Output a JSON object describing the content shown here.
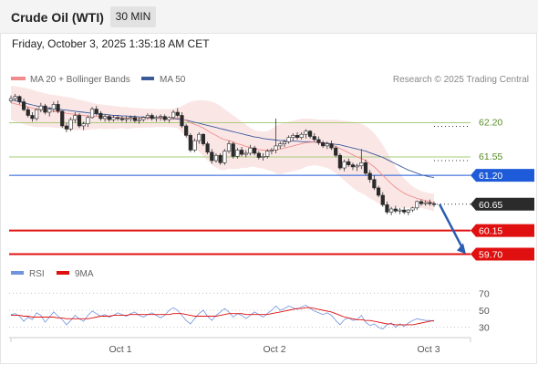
{
  "header": {
    "title": "Crude Oil (WTI)",
    "timeframe": "30 MIN",
    "timestamp": "Friday, October 3, 2025 1:35:18 AM CET"
  },
  "legend": {
    "ma20": {
      "label": "MA 20 + Bollinger Bands",
      "color": "#f28c8c"
    },
    "ma50": {
      "label": "MA 50",
      "color": "#3a5a9a"
    },
    "rsi": {
      "label": "RSI",
      "color": "#6f93dc"
    },
    "ma9": {
      "label": "9MA",
      "color": "#e01010"
    }
  },
  "research_note": "Research © 2025 Trading Central",
  "chart_data": {
    "type": "candlestick",
    "instrument": "Crude Oil (WTI)",
    "interval": "30 MIN",
    "xaxis": {
      "tick_labels": [
        "Oct 1",
        "Oct 2",
        "Oct 3"
      ]
    },
    "price_range": [
      59.5,
      62.8
    ],
    "candles_ohlc": [
      [
        62.62,
        62.72,
        62.58,
        62.66
      ],
      [
        62.66,
        62.75,
        62.62,
        62.7
      ],
      [
        62.7,
        62.72,
        62.55,
        62.6
      ],
      [
        62.6,
        62.66,
        62.42,
        62.45
      ],
      [
        62.45,
        62.5,
        62.3,
        62.34
      ],
      [
        62.34,
        62.4,
        62.22,
        62.28
      ],
      [
        62.28,
        62.48,
        62.24,
        62.45
      ],
      [
        62.45,
        62.58,
        62.4,
        62.52
      ],
      [
        62.52,
        62.56,
        62.36,
        62.4
      ],
      [
        62.4,
        62.5,
        62.32,
        62.46
      ],
      [
        62.46,
        62.6,
        62.4,
        62.55
      ],
      [
        62.55,
        62.62,
        62.38,
        62.42
      ],
      [
        62.42,
        62.44,
        62.1,
        62.14
      ],
      [
        62.14,
        62.2,
        62.02,
        62.08
      ],
      [
        62.08,
        62.3,
        62.04,
        62.26
      ],
      [
        62.26,
        62.4,
        62.2,
        62.34
      ],
      [
        62.34,
        62.38,
        62.1,
        62.14
      ],
      [
        62.14,
        62.22,
        62.06,
        62.18
      ],
      [
        62.18,
        62.34,
        62.12,
        62.3
      ],
      [
        62.3,
        62.5,
        62.28,
        62.46
      ],
      [
        62.46,
        62.52,
        62.34,
        62.38
      ],
      [
        62.38,
        62.42,
        62.24,
        62.28
      ],
      [
        62.28,
        62.36,
        62.22,
        62.32
      ],
      [
        62.32,
        62.36,
        62.22,
        62.26
      ],
      [
        62.26,
        62.34,
        62.22,
        62.3
      ],
      [
        62.3,
        62.34,
        62.24,
        62.28
      ],
      [
        62.28,
        62.32,
        62.22,
        62.26
      ],
      [
        62.26,
        62.32,
        62.2,
        62.28
      ],
      [
        62.28,
        62.34,
        62.22,
        62.3
      ],
      [
        62.3,
        62.34,
        62.2,
        62.24
      ],
      [
        62.24,
        62.3,
        62.18,
        62.26
      ],
      [
        62.26,
        62.32,
        62.22,
        62.3
      ],
      [
        62.3,
        62.38,
        62.26,
        62.34
      ],
      [
        62.34,
        62.38,
        62.24,
        62.28
      ],
      [
        62.28,
        62.34,
        62.22,
        62.3
      ],
      [
        62.3,
        62.36,
        62.24,
        62.32
      ],
      [
        62.32,
        62.36,
        62.22,
        62.26
      ],
      [
        62.26,
        62.32,
        62.2,
        62.3
      ],
      [
        62.3,
        62.44,
        62.26,
        62.4
      ],
      [
        62.4,
        62.48,
        62.3,
        62.34
      ],
      [
        62.34,
        62.4,
        62.1,
        62.14
      ],
      [
        62.14,
        62.18,
        61.92,
        61.96
      ],
      [
        61.96,
        62.0,
        61.64,
        61.68
      ],
      [
        61.68,
        61.9,
        61.64,
        61.86
      ],
      [
        61.86,
        62.02,
        61.8,
        61.98
      ],
      [
        61.98,
        62.0,
        61.76,
        61.8
      ],
      [
        61.8,
        61.84,
        61.6,
        61.64
      ],
      [
        61.64,
        61.7,
        61.42,
        61.48
      ],
      [
        61.48,
        61.62,
        61.44,
        61.58
      ],
      [
        61.58,
        61.62,
        61.4,
        61.44
      ],
      [
        61.44,
        61.7,
        61.4,
        61.66
      ],
      [
        61.66,
        61.86,
        61.62,
        61.8
      ],
      [
        61.8,
        61.84,
        61.52,
        61.56
      ],
      [
        61.56,
        61.72,
        61.52,
        61.68
      ],
      [
        61.68,
        61.74,
        61.56,
        61.6
      ],
      [
        61.6,
        61.68,
        61.54,
        61.62
      ],
      [
        61.62,
        61.78,
        61.58,
        61.72
      ],
      [
        61.72,
        61.76,
        61.58,
        61.62
      ],
      [
        61.62,
        61.66,
        61.5,
        61.54
      ],
      [
        61.54,
        61.62,
        61.48,
        61.56
      ],
      [
        61.56,
        61.7,
        61.52,
        61.66
      ],
      [
        61.66,
        61.72,
        61.6,
        61.68
      ],
      [
        61.68,
        62.28,
        61.62,
        61.76
      ],
      [
        61.76,
        61.84,
        61.7,
        61.8
      ],
      [
        61.8,
        61.88,
        61.74,
        61.84
      ],
      [
        61.84,
        61.96,
        61.8,
        61.92
      ],
      [
        61.92,
        62.0,
        61.86,
        61.96
      ],
      [
        61.96,
        62.02,
        61.88,
        61.92
      ],
      [
        61.92,
        62.02,
        61.88,
        61.98
      ],
      [
        61.98,
        62.08,
        61.9,
        62.04
      ],
      [
        62.04,
        62.06,
        61.9,
        61.94
      ],
      [
        61.94,
        62.0,
        61.84,
        61.88
      ],
      [
        61.88,
        61.94,
        61.78,
        61.82
      ],
      [
        61.82,
        61.86,
        61.72,
        61.76
      ],
      [
        61.76,
        61.84,
        61.7,
        61.8
      ],
      [
        61.8,
        61.86,
        61.68,
        61.72
      ],
      [
        61.72,
        61.76,
        61.54,
        61.58
      ],
      [
        61.58,
        61.62,
        61.3,
        61.34
      ],
      [
        61.34,
        61.5,
        61.28,
        61.46
      ],
      [
        61.46,
        61.52,
        61.36,
        61.4
      ],
      [
        61.4,
        61.44,
        61.3,
        61.36
      ],
      [
        61.36,
        61.42,
        61.28,
        61.38
      ],
      [
        61.38,
        61.7,
        61.32,
        61.44
      ],
      [
        61.44,
        61.5,
        61.2,
        61.24
      ],
      [
        61.24,
        61.3,
        61.06,
        61.12
      ],
      [
        61.12,
        61.2,
        60.92,
        60.96
      ],
      [
        60.96,
        61.0,
        60.78,
        60.82
      ],
      [
        60.82,
        60.88,
        60.6,
        60.64
      ],
      [
        60.64,
        60.7,
        60.46,
        60.5
      ],
      [
        60.5,
        60.6,
        60.44,
        60.56
      ],
      [
        60.56,
        60.62,
        60.48,
        60.52
      ],
      [
        60.52,
        60.58,
        60.46,
        60.54
      ],
      [
        60.54,
        60.6,
        60.46,
        60.5
      ],
      [
        60.5,
        60.56,
        60.44,
        60.54
      ],
      [
        60.54,
        60.6,
        60.5,
        60.58
      ],
      [
        60.58,
        60.72,
        60.54,
        60.7
      ],
      [
        60.7,
        60.74,
        60.62,
        60.66
      ],
      [
        60.66,
        60.72,
        60.62,
        60.68
      ],
      [
        60.68,
        60.74,
        60.62,
        60.66
      ],
      [
        60.66,
        60.7,
        60.6,
        60.65
      ]
    ],
    "ma20": [
      62.58,
      62.56,
      62.54,
      62.52,
      62.5,
      62.48,
      62.46,
      62.45,
      62.44,
      62.43,
      62.42,
      62.41,
      62.4,
      62.38,
      62.37,
      62.36,
      62.35,
      62.34,
      62.33,
      62.33,
      62.32,
      62.32,
      62.31,
      62.31,
      62.3,
      62.3,
      62.3,
      62.29,
      62.29,
      62.29,
      62.29,
      62.29,
      62.29,
      62.29,
      62.29,
      62.29,
      62.29,
      62.29,
      62.29,
      62.29,
      62.27,
      62.24,
      62.2,
      62.17,
      62.14,
      62.1,
      62.05,
      62.0,
      61.96,
      61.91,
      61.88,
      61.86,
      61.83,
      61.8,
      61.78,
      61.75,
      61.73,
      61.71,
      61.69,
      61.68,
      61.67,
      61.68,
      61.69,
      61.7,
      61.72,
      61.74,
      61.76,
      61.78,
      61.8,
      61.82,
      61.83,
      61.83,
      61.82,
      61.81,
      61.8,
      61.78,
      61.75,
      61.71,
      61.67,
      61.63,
      61.59,
      61.55,
      61.52,
      61.48,
      61.42,
      61.36,
      61.28,
      61.2,
      61.12,
      61.04,
      60.97,
      60.91,
      60.86,
      60.82,
      60.79,
      60.76,
      60.74,
      60.72,
      60.7,
      60.68
    ],
    "ma50": [
      62.64,
      62.62,
      62.6,
      62.58,
      62.56,
      62.54,
      62.52,
      62.5,
      62.49,
      62.48,
      62.47,
      62.46,
      62.45,
      62.44,
      62.43,
      62.42,
      62.41,
      62.4,
      62.39,
      62.38,
      62.37,
      62.36,
      62.36,
      62.35,
      62.34,
      62.34,
      62.33,
      62.33,
      62.32,
      62.32,
      62.31,
      62.31,
      62.3,
      62.3,
      62.3,
      62.29,
      62.29,
      62.28,
      62.28,
      62.27,
      62.26,
      62.25,
      62.23,
      62.21,
      62.19,
      62.17,
      62.15,
      62.13,
      62.11,
      62.09,
      62.07,
      62.05,
      62.03,
      62.01,
      61.99,
      61.97,
      61.95,
      61.93,
      61.92,
      61.9,
      61.89,
      61.88,
      61.87,
      61.86,
      61.86,
      61.85,
      61.85,
      61.85,
      61.84,
      61.84,
      61.84,
      61.83,
      61.83,
      61.82,
      61.81,
      61.8,
      61.79,
      61.78,
      61.76,
      61.74,
      61.72,
      61.7,
      61.68,
      61.66,
      61.63,
      61.6,
      61.57,
      61.54,
      61.5,
      61.46,
      61.42,
      61.38,
      61.34,
      61.3,
      61.27,
      61.24,
      61.21,
      61.19,
      61.17,
      61.16
    ],
    "bollinger_upper": [
      62.9,
      62.9,
      62.88,
      62.87,
      62.85,
      62.83,
      62.8,
      62.78,
      62.76,
      62.74,
      62.73,
      62.72,
      62.7,
      62.69,
      62.68,
      62.66,
      62.64,
      62.62,
      62.6,
      62.58,
      62.56,
      62.55,
      62.54,
      62.53,
      62.52,
      62.51,
      62.5,
      62.5,
      62.49,
      62.48,
      62.48,
      62.47,
      62.47,
      62.47,
      62.46,
      62.46,
      62.46,
      62.46,
      62.47,
      62.48,
      62.52,
      62.56,
      62.6,
      62.62,
      62.63,
      62.63,
      62.62,
      62.6,
      62.57,
      62.52,
      62.46,
      62.4,
      62.34,
      62.28,
      62.22,
      62.16,
      62.1,
      62.06,
      62.04,
      62.03,
      62.04,
      62.08,
      62.14,
      62.18,
      62.2,
      62.22,
      62.24,
      62.26,
      62.28,
      62.28,
      62.28,
      62.27,
      62.26,
      62.26,
      62.26,
      62.26,
      62.26,
      62.25,
      62.24,
      62.23,
      62.22,
      62.2,
      62.18,
      62.14,
      62.08,
      62.0,
      61.9,
      61.78,
      61.64,
      61.5,
      61.36,
      61.24,
      61.14,
      61.06,
      60.99,
      60.94,
      60.9,
      60.88,
      60.86,
      60.85
    ],
    "bollinger_lower": [
      62.26,
      62.22,
      62.2,
      62.17,
      62.15,
      62.13,
      62.12,
      62.12,
      62.12,
      62.12,
      62.11,
      62.1,
      62.1,
      62.07,
      62.06,
      62.06,
      62.06,
      62.06,
      62.06,
      62.08,
      62.08,
      62.09,
      62.08,
      62.09,
      62.08,
      62.09,
      62.1,
      62.08,
      62.09,
      62.1,
      62.1,
      62.11,
      62.11,
      62.11,
      62.12,
      62.12,
      62.12,
      62.12,
      62.11,
      62.1,
      62.02,
      61.92,
      61.8,
      61.72,
      61.65,
      61.57,
      61.48,
      61.4,
      61.35,
      61.3,
      61.3,
      61.32,
      61.32,
      61.32,
      61.34,
      61.34,
      61.36,
      61.36,
      61.34,
      61.33,
      61.3,
      61.28,
      61.24,
      61.22,
      61.24,
      61.26,
      61.28,
      61.3,
      61.32,
      61.36,
      61.38,
      61.39,
      61.38,
      61.36,
      61.34,
      61.3,
      61.24,
      61.17,
      61.1,
      61.03,
      60.96,
      60.9,
      60.86,
      60.82,
      60.76,
      60.72,
      60.66,
      60.62,
      60.6,
      60.58,
      60.58,
      60.58,
      60.58,
      60.58,
      60.59,
      60.58,
      60.58,
      60.56,
      60.54,
      60.51
    ],
    "horizontal_lines": [
      {
        "value": 62.2,
        "label": "62.20",
        "color": "#a6cc7a",
        "box": false
      },
      {
        "value": 61.55,
        "label": "61.55",
        "color": "#a6cc7a",
        "box": false
      },
      {
        "value": 61.2,
        "label": "61.20",
        "color": "#1e5bd8",
        "box": true
      },
      {
        "value": 60.15,
        "label": "60.15",
        "color": "#e01010",
        "box": true
      },
      {
        "value": 59.7,
        "label": "59.70",
        "color": "#e01010",
        "box": true
      }
    ],
    "last_price": {
      "value": 60.65,
      "label": "60.65"
    },
    "projection_arrow": {
      "from": 60.65,
      "to": 59.7,
      "color": "#2a5db0"
    },
    "rsi": {
      "range": [
        20,
        80
      ],
      "tick_labels": [
        "70",
        "50",
        "30"
      ],
      "levels": [
        70,
        50,
        30
      ],
      "rsi_values": [
        45,
        46,
        43,
        37,
        42,
        39,
        47,
        44,
        36,
        42,
        48,
        43,
        39,
        33,
        38,
        44,
        40,
        37,
        44,
        49,
        46,
        43,
        45,
        42,
        44,
        47,
        45,
        43,
        46,
        48,
        44,
        42,
        45,
        47,
        44,
        41,
        44,
        50,
        53,
        50,
        44,
        38,
        34,
        40,
        46,
        50,
        43,
        38,
        44,
        48,
        52,
        48,
        42,
        46,
        44,
        40,
        44,
        48,
        45,
        42,
        46,
        50,
        55,
        50,
        52,
        55,
        53,
        51,
        54,
        56,
        52,
        49,
        47,
        45,
        47,
        44,
        38,
        33,
        39,
        41,
        38,
        39,
        44,
        36,
        32,
        34,
        30,
        28,
        33,
        35,
        30,
        34,
        31,
        35,
        38,
        40,
        39,
        38,
        38,
        37
      ],
      "ma9_values": [
        44,
        44,
        44,
        43,
        43,
        42,
        42,
        42,
        42,
        42,
        42,
        41,
        41,
        40,
        40,
        40,
        40,
        40,
        40,
        41,
        42,
        43,
        43,
        43,
        44,
        44,
        44,
        44,
        45,
        45,
        45,
        45,
        45,
        45,
        45,
        45,
        45,
        45,
        46,
        46,
        46,
        45,
        44,
        43,
        43,
        43,
        43,
        43,
        43,
        44,
        45,
        46,
        46,
        46,
        46,
        45,
        45,
        45,
        45,
        45,
        45,
        46,
        47,
        48,
        49,
        50,
        51,
        52,
        52,
        53,
        53,
        52,
        51,
        50,
        49,
        48,
        46,
        44,
        42,
        41,
        40,
        39,
        39,
        38,
        38,
        37,
        36,
        35,
        34,
        34,
        33,
        33,
        33,
        33,
        33,
        34,
        35,
        36,
        37,
        38
      ]
    }
  }
}
